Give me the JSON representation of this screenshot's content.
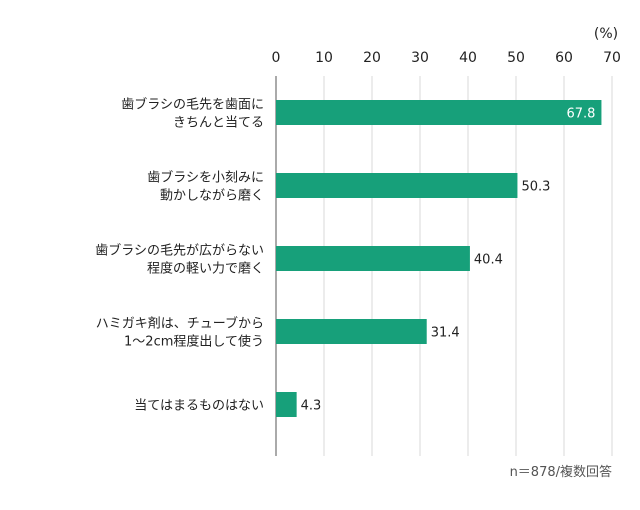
{
  "chart_data": {
    "type": "bar",
    "orientation": "horizontal",
    "unit_label": "(%)",
    "xlim": [
      0,
      70
    ],
    "ticks": [
      0,
      10,
      20,
      30,
      40,
      50,
      60,
      70
    ],
    "categories": [
      [
        "歯ブラシの毛先を歯面に",
        "きちんと当てる"
      ],
      [
        "歯ブラシを小刻みに",
        "動かしながら磨く"
      ],
      [
        "歯ブラシの毛先が広がらない",
        "程度の軽い力で磨く"
      ],
      [
        "ハミガキ剤は、チューブから",
        "1～2cm程度出して使う"
      ],
      [
        "当てはまるものはない"
      ]
    ],
    "values": [
      67.8,
      50.3,
      40.4,
      31.4,
      4.3
    ],
    "value_labels": [
      "67.8",
      "50.3",
      "40.4",
      "31.4",
      "4.3"
    ],
    "bar_color": "#17a07a",
    "grid": true,
    "note": "n＝878/複数回答"
  }
}
